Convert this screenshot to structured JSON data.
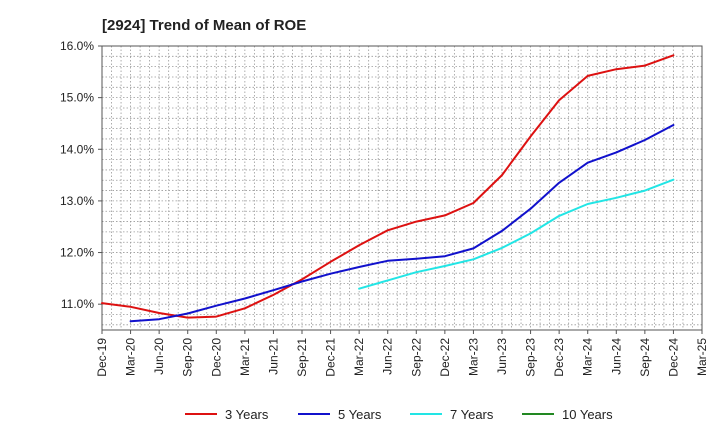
{
  "chart_data": {
    "type": "line",
    "title": "[2924]  Trend of Mean of ROE",
    "xlabel": "",
    "ylabel": "",
    "x": [
      "Dec-19",
      "Mar-20",
      "Jun-20",
      "Sep-20",
      "Dec-20",
      "Mar-21",
      "Jun-21",
      "Sep-21",
      "Dec-21",
      "Mar-22",
      "Jun-22",
      "Sep-22",
      "Dec-22",
      "Mar-23",
      "Jun-23",
      "Sep-23",
      "Dec-23",
      "Mar-24",
      "Jun-24",
      "Sep-24",
      "Dec-24",
      "Mar-25"
    ],
    "y_ticks": [
      "11.0%",
      "12.0%",
      "13.0%",
      "14.0%",
      "15.0%",
      "16.0%"
    ],
    "ylim": [
      10.5,
      16.0
    ],
    "grid": true,
    "legend_position": "bottom",
    "series": [
      {
        "name": "3 Years",
        "color": "#dd1111",
        "values": [
          11.02,
          10.95,
          10.83,
          10.74,
          10.76,
          10.92,
          11.18,
          11.48,
          11.82,
          12.14,
          12.43,
          12.6,
          12.72,
          12.96,
          13.5,
          14.25,
          14.95,
          15.42,
          15.55,
          15.62,
          15.82,
          null
        ]
      },
      {
        "name": "5 Years",
        "color": "#1111cc",
        "values": [
          null,
          10.67,
          10.71,
          10.82,
          10.97,
          11.11,
          11.27,
          11.44,
          11.59,
          11.72,
          11.84,
          11.88,
          11.93,
          12.08,
          12.42,
          12.85,
          13.35,
          13.74,
          13.94,
          14.18,
          14.47,
          null
        ]
      },
      {
        "name": "7 Years",
        "color": "#22e5e5",
        "values": [
          null,
          null,
          null,
          null,
          null,
          null,
          null,
          null,
          null,
          11.3,
          11.46,
          11.62,
          11.74,
          11.87,
          12.09,
          12.37,
          12.71,
          12.94,
          13.06,
          13.2,
          13.41,
          null
        ]
      },
      {
        "name": "10 Years",
        "color": "#228822",
        "values": [
          null,
          null,
          null,
          null,
          null,
          null,
          null,
          null,
          null,
          null,
          null,
          null,
          null,
          null,
          null,
          null,
          null,
          null,
          null,
          null,
          null,
          null
        ]
      }
    ]
  }
}
